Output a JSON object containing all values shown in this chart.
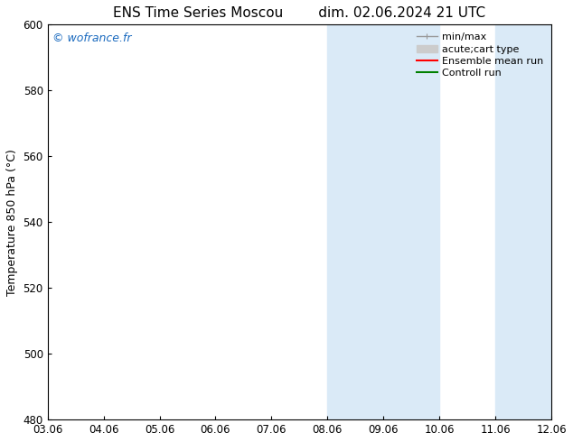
{
  "title_left": "ENS Time Series Moscou",
  "title_right": "dim. 02.06.2024 21 UTC",
  "ylabel": "Temperature 850 hPa (°C)",
  "ylim": [
    480,
    600
  ],
  "yticks": [
    480,
    500,
    520,
    540,
    560,
    580,
    600
  ],
  "xtick_labels": [
    "03.06",
    "04.06",
    "05.06",
    "06.06",
    "07.06",
    "08.06",
    "09.06",
    "10.06",
    "11.06",
    "12.06"
  ],
  "background_color": "#ffffff",
  "plot_bg_color": "#ffffff",
  "shaded_regions": [
    {
      "xstart": 5,
      "xend": 7,
      "color": "#daeaf7"
    },
    {
      "xstart": 8,
      "xend": 9,
      "color": "#daeaf7"
    }
  ],
  "watermark_text": "© wofrance.fr",
  "watermark_color": "#1a6abf",
  "legend_entries": [
    {
      "label": "min/max",
      "color": "#999999",
      "lw": 1.0,
      "style": "minmax"
    },
    {
      "label": "acute;cart type",
      "color": "#cccccc",
      "lw": 6,
      "style": "patch"
    },
    {
      "label": "Ensemble mean run",
      "color": "#ff0000",
      "lw": 1.5,
      "style": "solid"
    },
    {
      "label": "Controll run",
      "color": "#008000",
      "lw": 1.5,
      "style": "solid"
    }
  ],
  "title_fontsize": 11,
  "axis_fontsize": 9,
  "tick_fontsize": 8.5,
  "legend_fontsize": 8,
  "watermark_fontsize": 9,
  "figsize": [
    6.34,
    4.9
  ],
  "dpi": 100
}
